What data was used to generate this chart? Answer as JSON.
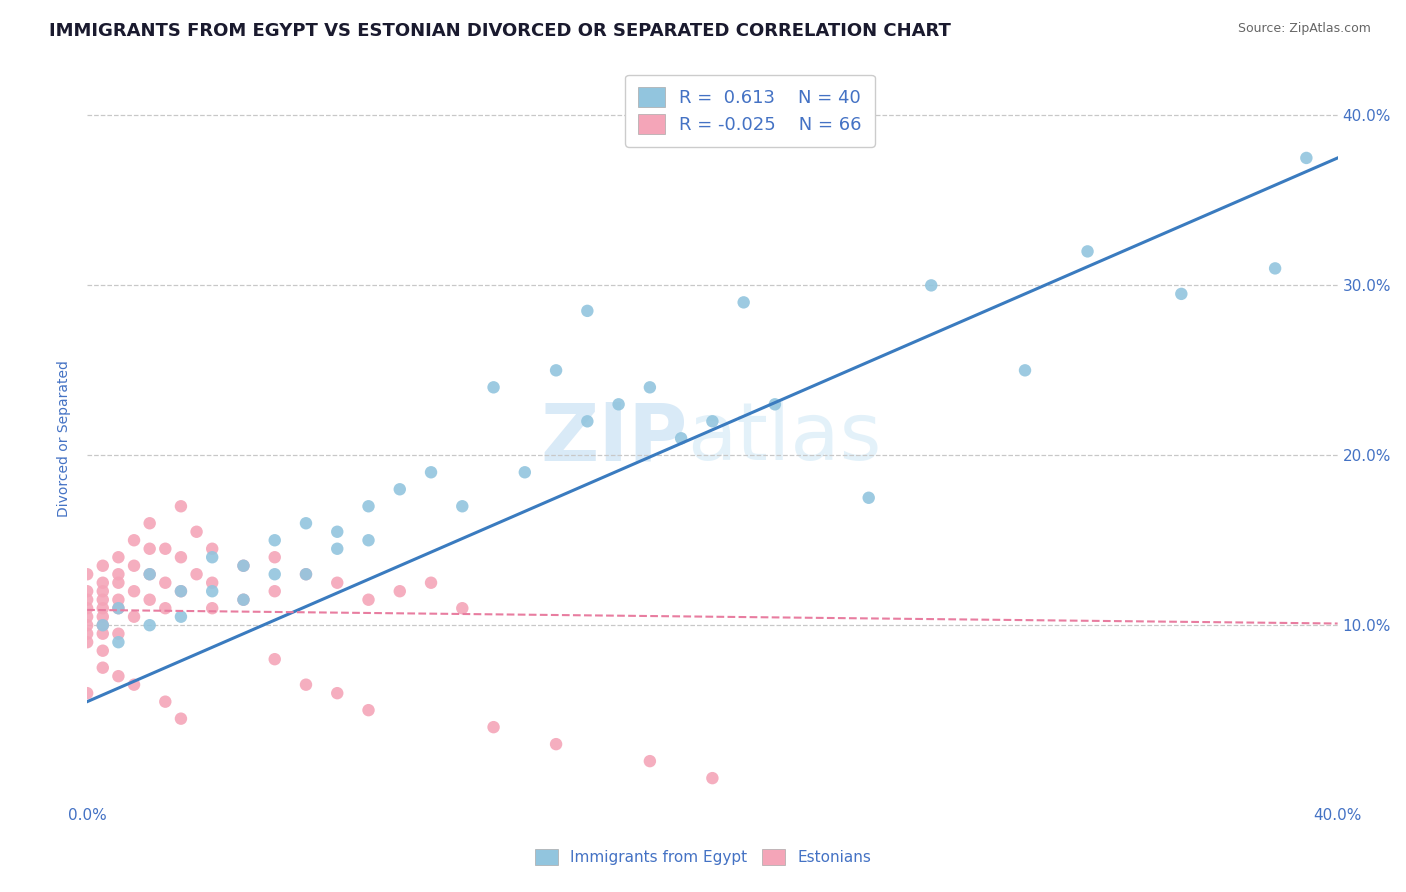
{
  "title": "IMMIGRANTS FROM EGYPT VS ESTONIAN DIVORCED OR SEPARATED CORRELATION CHART",
  "source": "Source: ZipAtlas.com",
  "ylabel": "Divorced or Separated",
  "legend_label_1": "Immigrants from Egypt",
  "legend_label_2": "Estonians",
  "r1": 0.613,
  "n1": 40,
  "r2": -0.025,
  "n2": 66,
  "color_blue": "#92c5de",
  "color_pink": "#f4a5b8",
  "color_blue_line": "#3a7bbf",
  "color_pink_line": "#e87da0",
  "color_axis_label": "#4472C4",
  "watermark_zip": "ZIP",
  "watermark_atlas": "atlas",
  "xlim": [
    0.0,
    0.4
  ],
  "ylim": [
    -0.005,
    0.425
  ],
  "yticks": [
    0.1,
    0.2,
    0.3,
    0.4
  ],
  "ytick_labels": [
    "10.0%",
    "20.0%",
    "30.0%",
    "40.0%"
  ],
  "blue_trend_x": [
    0.0,
    0.4
  ],
  "blue_trend_y": [
    0.055,
    0.375
  ],
  "pink_trend_x": [
    0.0,
    0.4
  ],
  "pink_trend_y": [
    0.109,
    0.101
  ],
  "blue_scatter_x": [
    0.005,
    0.01,
    0.01,
    0.02,
    0.02,
    0.03,
    0.03,
    0.04,
    0.04,
    0.05,
    0.05,
    0.06,
    0.06,
    0.07,
    0.07,
    0.08,
    0.08,
    0.09,
    0.09,
    0.1,
    0.11,
    0.12,
    0.13,
    0.14,
    0.15,
    0.16,
    0.17,
    0.18,
    0.19,
    0.2,
    0.22,
    0.25,
    0.27,
    0.3,
    0.32,
    0.35,
    0.38,
    0.39,
    0.16,
    0.21
  ],
  "blue_scatter_y": [
    0.1,
    0.11,
    0.09,
    0.13,
    0.1,
    0.12,
    0.105,
    0.14,
    0.12,
    0.135,
    0.115,
    0.15,
    0.13,
    0.16,
    0.13,
    0.155,
    0.145,
    0.17,
    0.15,
    0.18,
    0.19,
    0.17,
    0.24,
    0.19,
    0.25,
    0.22,
    0.23,
    0.24,
    0.21,
    0.22,
    0.23,
    0.175,
    0.3,
    0.25,
    0.32,
    0.295,
    0.31,
    0.375,
    0.285,
    0.29
  ],
  "pink_scatter_x": [
    0.0,
    0.0,
    0.0,
    0.0,
    0.0,
    0.0,
    0.0,
    0.0,
    0.005,
    0.005,
    0.005,
    0.005,
    0.005,
    0.005,
    0.005,
    0.005,
    0.005,
    0.01,
    0.01,
    0.01,
    0.01,
    0.01,
    0.01,
    0.015,
    0.015,
    0.015,
    0.015,
    0.02,
    0.02,
    0.02,
    0.02,
    0.025,
    0.025,
    0.025,
    0.03,
    0.03,
    0.03,
    0.035,
    0.035,
    0.04,
    0.04,
    0.04,
    0.05,
    0.05,
    0.06,
    0.06,
    0.07,
    0.08,
    0.09,
    0.1,
    0.11,
    0.12,
    0.06,
    0.07,
    0.08,
    0.09,
    0.13,
    0.15,
    0.18,
    0.2,
    0.015,
    0.025,
    0.03,
    0.01,
    0.005,
    0.0
  ],
  "pink_scatter_y": [
    0.105,
    0.12,
    0.095,
    0.11,
    0.13,
    0.09,
    0.115,
    0.1,
    0.115,
    0.095,
    0.125,
    0.11,
    0.135,
    0.1,
    0.085,
    0.12,
    0.105,
    0.14,
    0.11,
    0.125,
    0.095,
    0.115,
    0.13,
    0.15,
    0.12,
    0.135,
    0.105,
    0.16,
    0.13,
    0.115,
    0.145,
    0.145,
    0.125,
    0.11,
    0.17,
    0.14,
    0.12,
    0.155,
    0.13,
    0.145,
    0.125,
    0.11,
    0.135,
    0.115,
    0.14,
    0.12,
    0.13,
    0.125,
    0.115,
    0.12,
    0.125,
    0.11,
    0.08,
    0.065,
    0.06,
    0.05,
    0.04,
    0.03,
    0.02,
    0.01,
    0.065,
    0.055,
    0.045,
    0.07,
    0.075,
    0.06
  ],
  "background_color": "#ffffff",
  "grid_color": "#c8c8c8",
  "title_fontsize": 13,
  "axis_label_fontsize": 10,
  "tick_fontsize": 11,
  "legend_fontsize": 13
}
